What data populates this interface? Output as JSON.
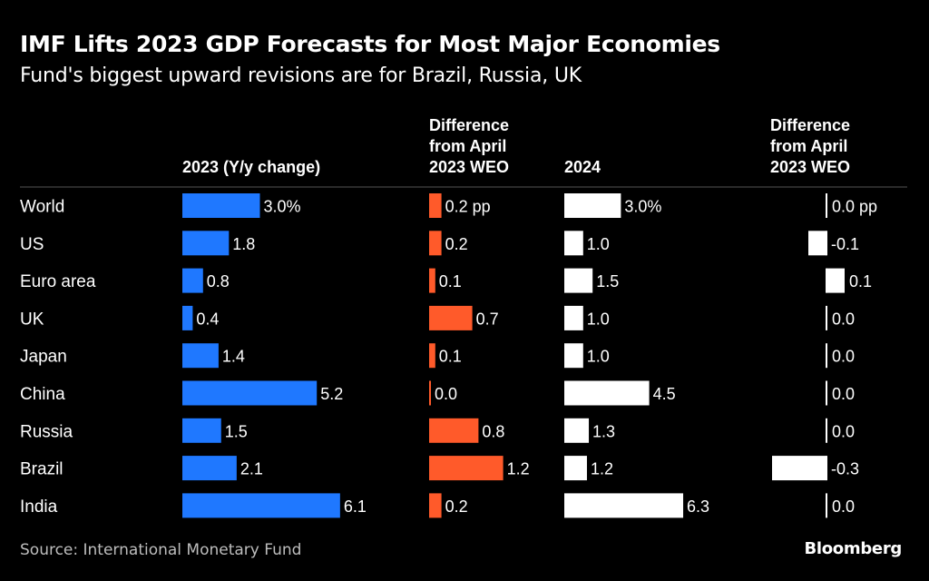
{
  "title": "IMF Lifts 2023 GDP Forecasts for Most Major Economies",
  "subtitle": "Fund's biggest upward revisions are for Brazil, Russia, UK",
  "source": "Source: International Monetary Fund",
  "brand": "Bloomberg",
  "colors": {
    "background": "#000000",
    "gdp2023": "#1f78ff",
    "diff2023": "#ff5a2a",
    "gdp2024": "#ffffff",
    "diff2024": "#ffffff",
    "divider": "#555555"
  },
  "chart_data": {
    "type": "table",
    "categories": [
      "World",
      "US",
      "Euro area",
      "UK",
      "Japan",
      "China",
      "Russia",
      "Brazil",
      "India"
    ],
    "columns": [
      {
        "header": [
          "2023 (Y/y change)"
        ],
        "values": [
          3.0,
          1.8,
          0.8,
          0.4,
          1.4,
          5.2,
          1.5,
          2.1,
          6.1
        ],
        "labels": [
          "3.0%",
          "1.8",
          "0.8",
          "0.4",
          "1.4",
          "5.2",
          "1.5",
          "2.1",
          "6.1"
        ],
        "color": "#1f78ff"
      },
      {
        "header": [
          "Difference",
          "from April",
          "2023 WEO"
        ],
        "values": [
          0.2,
          0.2,
          0.1,
          0.7,
          0.1,
          0.0,
          0.8,
          1.2,
          0.2
        ],
        "labels": [
          "0.2 pp",
          "0.2",
          "0.1",
          "0.7",
          "0.1",
          "0.0",
          "0.8",
          "1.2",
          "0.2"
        ],
        "color": "#ff5a2a"
      },
      {
        "header": [
          "2024"
        ],
        "values": [
          3.0,
          1.0,
          1.5,
          1.0,
          1.0,
          4.5,
          1.3,
          1.2,
          6.3
        ],
        "labels": [
          "3.0%",
          "1.0",
          "1.5",
          "1.0",
          "1.0",
          "4.5",
          "1.3",
          "1.2",
          "6.3"
        ],
        "color": "#ffffff"
      },
      {
        "header": [
          "Difference",
          "from April",
          "2023 WEO"
        ],
        "values": [
          0.0,
          -0.1,
          0.1,
          0.0,
          0.0,
          0.0,
          0.0,
          -0.3,
          0.0
        ],
        "labels": [
          "0.0 pp",
          "-0.1",
          "0.1",
          "0.0",
          "0.0",
          "0.0",
          "0.0",
          "-0.3",
          "0.0"
        ],
        "color": "#ffffff"
      }
    ]
  }
}
